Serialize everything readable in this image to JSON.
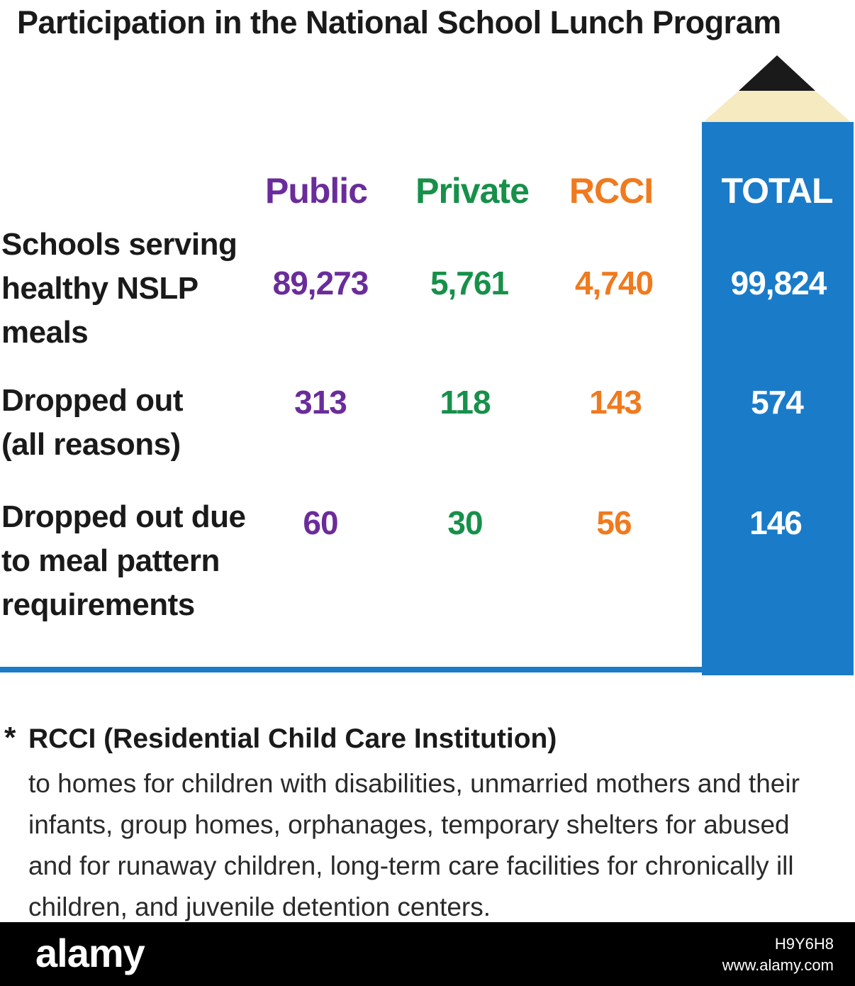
{
  "title": "Participation in the National School Lunch Program",
  "colors": {
    "public": "#6a2c9b",
    "private": "#17904a",
    "rcci": "#f07a1e",
    "total_bar": "#1a7bc9",
    "pencil_wood": "#f5eac0",
    "pencil_tip": "#1a1a1a"
  },
  "icons": [
    "pencil-icon"
  ],
  "chart_data": {
    "type": "table",
    "title": "Participation in the National School Lunch Program",
    "columns": [
      "Public",
      "Private",
      "RCCI",
      "TOTAL"
    ],
    "rows": [
      {
        "label_lines": [
          "Schools serving",
          "healthy NSLP",
          "meals"
        ],
        "values": [
          "89,273",
          "5,761",
          "4,740",
          "99,824"
        ]
      },
      {
        "label_lines": [
          "Dropped out",
          "(all reasons)"
        ],
        "values": [
          "313",
          "118",
          "143",
          "574"
        ]
      },
      {
        "label_lines": [
          "Dropped out due",
          "to meal pattern",
          "requirements"
        ],
        "values": [
          "60",
          "30",
          "56",
          "146"
        ]
      }
    ]
  },
  "footnote": {
    "marker": "*",
    "heading": "RCCI (Residential Child Care Institution)",
    "lines": [
      "to homes for children with disabilities, unmarried mothers and their",
      "infants, group homes, orphanages, temporary shelters for abused",
      "and for runaway children, long-term care facilities for chronically ill",
      "children, and juvenile detention centers."
    ]
  },
  "watermark": {
    "brand": "alamy",
    "image_id": "H9Y6H8",
    "site": "www.alamy.com"
  }
}
